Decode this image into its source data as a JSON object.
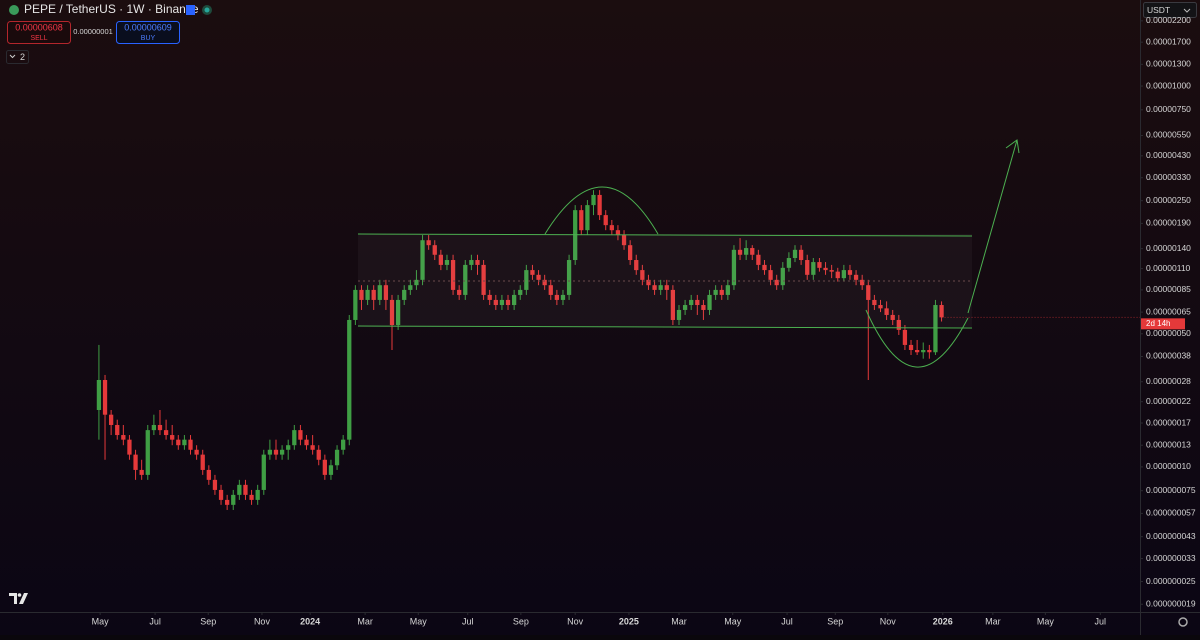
{
  "chart_data": {
    "type": "candlestick",
    "title": "PEPE / TetherUS · 1W · Binance",
    "log_scale": true,
    "grid": false,
    "up_color": "#3f9e44",
    "down_color": "#e5393a",
    "open": [
      1.99e-07,
      2.86e-07,
      1.88e-07,
      1.66e-07,
      1.47e-07,
      1.39e-07,
      1.16e-07,
      9.64e-08,
      9.08e-08,
      1.56e-07,
      1.66e-07,
      1.56e-07,
      1.47e-07,
      1.39e-07,
      1.3e-07,
      1.39e-07,
      1.23e-07,
      1.16e-07,
      9.64e-08,
      8.55e-08,
      7.57e-08,
      6.71e-08,
      6.32e-08,
      7.13e-08,
      8.05e-08,
      7.13e-08,
      6.71e-08,
      7.57e-08,
      1.16e-07,
      1.23e-07,
      1.16e-07,
      1.23e-07,
      1.3e-07,
      1.56e-07,
      1.39e-07,
      1.3e-07,
      1.23e-07,
      1.09e-07,
      9.08e-08,
      1.02e-07,
      1.23e-07,
      1.39e-07,
      5.91e-07,
      8.5e-07,
      7.53e-07,
      8.5e-07,
      7.53e-07,
      9e-07,
      7.53e-07,
      5.56e-07,
      7.53e-07,
      8.5e-07,
      9e-07,
      9.6e-07,
      1.55e-06,
      1.46e-06,
      1.3e-06,
      1.15e-06,
      1.22e-06,
      8.5e-07,
      8e-07,
      1.15e-06,
      1.22e-06,
      1.15e-06,
      8e-07,
      7.53e-07,
      7.08e-07,
      7.53e-07,
      7.08e-07,
      8e-07,
      8.5e-07,
      1.08e-06,
      1.02e-06,
      9.6e-07,
      9e-07,
      8e-07,
      7.53e-07,
      8e-07,
      1.22e-06,
      2.23e-06,
      1.75e-06,
      2.37e-06,
      2.68e-06,
      2.1e-06,
      1.86e-06,
      1.75e-06,
      1.65e-06,
      1.46e-06,
      1.22e-06,
      1.08e-06,
      9.6e-07,
      9e-07,
      8.5e-07,
      9e-07,
      8.5e-07,
      5.91e-07,
      6.67e-07,
      7.08e-07,
      7.53e-07,
      7.08e-07,
      6.67e-07,
      8e-07,
      8.5e-07,
      8e-07,
      9e-07,
      1.38e-06,
      1.3e-06,
      1.41e-06,
      1.3e-06,
      1.15e-06,
      1.08e-06,
      9.6e-07,
      9e-07,
      1.11e-06,
      1.25e-06,
      1.38e-06,
      1.22e-06,
      1.02e-06,
      1.19e-06,
      1.11e-06,
      1.08e-06,
      1.06e-06,
      9.8e-07,
      1.08e-06,
      1.02e-06,
      9.6e-07,
      9e-07,
      7.53e-07,
      7.08e-07,
      6.8e-07,
      6.28e-07,
      5.91e-07,
      5.24e-07,
      4.37e-07,
      4.11e-07,
      4e-07,
      4.11e-07,
      4e-07,
      7.08e-07
    ],
    "high": [
      4.37e-07,
      3.04e-07,
      1.99e-07,
      1.77e-07,
      1.66e-07,
      1.47e-07,
      1.23e-07,
      1.09e-07,
      1.66e-07,
      1.88e-07,
      1.99e-07,
      1.77e-07,
      1.66e-07,
      1.47e-07,
      1.47e-07,
      1.47e-07,
      1.3e-07,
      1.23e-07,
      1.02e-07,
      9.08e-08,
      8.05e-08,
      7.13e-08,
      7.57e-08,
      8.55e-08,
      8.55e-08,
      7.57e-08,
      8.05e-08,
      1.23e-07,
      1.39e-07,
      1.39e-07,
      1.3e-07,
      1.39e-07,
      1.66e-07,
      1.66e-07,
      1.47e-07,
      1.47e-07,
      1.3e-07,
      1.16e-07,
      1.09e-07,
      1.3e-07,
      1.47e-07,
      6.28e-07,
      9e-07,
      9e-07,
      9e-07,
      9e-07,
      9.6e-07,
      9.6e-07,
      8e-07,
      8e-07,
      9e-07,
      9.6e-07,
      1.08e-06,
      1.65e-06,
      1.65e-06,
      1.55e-06,
      1.38e-06,
      1.3e-06,
      1.3e-06,
      9e-07,
      1.22e-06,
      1.3e-06,
      1.3e-06,
      1.22e-06,
      8.5e-07,
      8e-07,
      8e-07,
      8e-07,
      8.5e-07,
      9e-07,
      1.15e-06,
      1.15e-06,
      1.08e-06,
      1.02e-06,
      9.6e-07,
      8.5e-07,
      8.5e-07,
      1.3e-06,
      2.37e-06,
      2.37e-06,
      2.52e-06,
      2.84e-06,
      2.84e-06,
      2.23e-06,
      1.98e-06,
      1.86e-06,
      1.75e-06,
      1.55e-06,
      1.3e-06,
      1.15e-06,
      1.02e-06,
      9.6e-07,
      9.6e-07,
      9.6e-07,
      9e-07,
      7.08e-07,
      7.53e-07,
      8e-07,
      8e-07,
      7.53e-07,
      8.5e-07,
      9e-07,
      9e-07,
      9.6e-07,
      1.46e-06,
      1.59e-06,
      1.55e-06,
      1.46e-06,
      1.38e-06,
      1.22e-06,
      1.15e-06,
      1.02e-06,
      1.19e-06,
      1.34e-06,
      1.46e-06,
      1.46e-06,
      1.3e-06,
      1.25e-06,
      1.25e-06,
      1.19e-06,
      1.15e-06,
      1.11e-06,
      1.15e-06,
      1.15e-06,
      1.08e-06,
      1.02e-06,
      9.6e-07,
      8e-07,
      7.53e-07,
      7.4e-07,
      6.67e-07,
      6.28e-07,
      5.56e-07,
      4.64e-07,
      4.64e-07,
      4.5e-07,
      4.37e-07,
      7.53e-07,
      7.4e-07
    ],
    "low": [
      1.39e-07,
      1.09e-07,
      1.47e-07,
      1.39e-07,
      1.3e-07,
      1.09e-07,
      8.55e-08,
      8.55e-08,
      8.55e-08,
      1.47e-07,
      1.47e-07,
      1.39e-07,
      1.3e-07,
      1.23e-07,
      1.23e-07,
      1.16e-07,
      1.09e-07,
      9.08e-08,
      8.05e-08,
      7.13e-08,
      6.32e-08,
      5.94e-08,
      5.94e-08,
      6.71e-08,
      6.71e-08,
      6.32e-08,
      6.32e-08,
      7.13e-08,
      1.09e-07,
      1.09e-07,
      1.09e-07,
      1.09e-07,
      1.23e-07,
      1.3e-07,
      1.23e-07,
      1.16e-07,
      1.02e-07,
      8.55e-08,
      8.55e-08,
      9.64e-08,
      1.16e-07,
      1.3e-07,
      5.56e-07,
      6.67e-07,
      7.08e-07,
      6.67e-07,
      7.08e-07,
      6.67e-07,
      4.11e-07,
      5.24e-07,
      7.08e-07,
      8e-07,
      8.5e-07,
      9e-07,
      1.38e-06,
      1.22e-06,
      1.08e-06,
      1.08e-06,
      8e-07,
      7.53e-07,
      7.53e-07,
      1.08e-06,
      1.02e-06,
      7.53e-07,
      7.08e-07,
      6.67e-07,
      6.67e-07,
      6.67e-07,
      6.67e-07,
      7.53e-07,
      8e-07,
      9.6e-07,
      9e-07,
      8.5e-07,
      7.53e-07,
      7.08e-07,
      7.08e-07,
      7.53e-07,
      1.15e-06,
      1.65e-06,
      1.65e-06,
      2.1e-06,
      1.98e-06,
      1.75e-06,
      1.65e-06,
      1.55e-06,
      1.38e-06,
      1.15e-06,
      1.02e-06,
      9e-07,
      8.5e-07,
      8e-07,
      8e-07,
      7.53e-07,
      5.56e-07,
      5.56e-07,
      6.28e-07,
      6.67e-07,
      6.28e-07,
      5.91e-07,
      6.28e-07,
      7.53e-07,
      7.53e-07,
      7.53e-07,
      8.5e-07,
      1.22e-06,
      1.22e-06,
      1.22e-06,
      1.08e-06,
      1.02e-06,
      9e-07,
      8.5e-07,
      8.5e-07,
      1.06e-06,
      1.19e-06,
      1.15e-06,
      9.6e-07,
      9.6e-07,
      1.06e-06,
      1.02e-06,
      9.8e-07,
      9.4e-07,
      9.4e-07,
      9.6e-07,
      9e-07,
      8.5e-07,
      2.86e-07,
      6.67e-07,
      6.5e-07,
      5.91e-07,
      5.56e-07,
      4.93e-07,
      4.11e-07,
      3.87e-07,
      3.87e-07,
      3.7e-07,
      3.7e-07,
      3.87e-07,
      5.8e-07
    ],
    "close": [
      2.86e-07,
      1.88e-07,
      1.66e-07,
      1.47e-07,
      1.39e-07,
      1.16e-07,
      9.64e-08,
      9.08e-08,
      1.56e-07,
      1.66e-07,
      1.56e-07,
      1.47e-07,
      1.39e-07,
      1.3e-07,
      1.39e-07,
      1.23e-07,
      1.16e-07,
      9.64e-08,
      8.55e-08,
      7.57e-08,
      6.71e-08,
      6.32e-08,
      7.13e-08,
      8.05e-08,
      7.13e-08,
      6.71e-08,
      7.57e-08,
      1.16e-07,
      1.23e-07,
      1.16e-07,
      1.23e-07,
      1.3e-07,
      1.56e-07,
      1.39e-07,
      1.3e-07,
      1.23e-07,
      1.09e-07,
      9.08e-08,
      1.02e-07,
      1.23e-07,
      1.39e-07,
      5.91e-07,
      8.5e-07,
      7.53e-07,
      8.5e-07,
      7.53e-07,
      9e-07,
      7.53e-07,
      5.56e-07,
      7.53e-07,
      8.5e-07,
      9e-07,
      9.6e-07,
      1.55e-06,
      1.46e-06,
      1.3e-06,
      1.15e-06,
      1.22e-06,
      8.5e-07,
      8e-07,
      1.15e-06,
      1.22e-06,
      1.15e-06,
      8e-07,
      7.53e-07,
      7.08e-07,
      7.53e-07,
      7.08e-07,
      8e-07,
      8.5e-07,
      1.08e-06,
      1.02e-06,
      9.6e-07,
      9e-07,
      8e-07,
      7.53e-07,
      8e-07,
      1.22e-06,
      2.23e-06,
      1.75e-06,
      2.37e-06,
      2.68e-06,
      2.1e-06,
      1.86e-06,
      1.75e-06,
      1.65e-06,
      1.46e-06,
      1.22e-06,
      1.08e-06,
      9.6e-07,
      9e-07,
      8.5e-07,
      9e-07,
      8.5e-07,
      5.91e-07,
      6.67e-07,
      7.08e-07,
      7.53e-07,
      7.08e-07,
      6.67e-07,
      8e-07,
      8.5e-07,
      8e-07,
      9e-07,
      1.38e-06,
      1.3e-06,
      1.41e-06,
      1.3e-06,
      1.15e-06,
      1.08e-06,
      9.6e-07,
      9e-07,
      1.11e-06,
      1.25e-06,
      1.38e-06,
      1.22e-06,
      1.02e-06,
      1.19e-06,
      1.11e-06,
      1.08e-06,
      1.06e-06,
      9.8e-07,
      1.08e-06,
      1.02e-06,
      9.6e-07,
      9e-07,
      7.53e-07,
      7.08e-07,
      6.8e-07,
      6.28e-07,
      5.91e-07,
      5.24e-07,
      4.37e-07,
      4.11e-07,
      4e-07,
      4.11e-07,
      4e-07,
      7.08e-07,
      6.1e-07
    ],
    "ylim": [
      1.73e-08,
      2.83e-05
    ],
    "yticks": [
      {
        "value": 2.2e-05,
        "label": "0.00002200"
      },
      {
        "value": 1.7e-05,
        "label": "0.00001700"
      },
      {
        "value": 1.3e-05,
        "label": "0.00001300"
      },
      {
        "value": 1e-05,
        "label": "0.00001000"
      },
      {
        "value": 7.5e-06,
        "label": "0.00000750"
      },
      {
        "value": 5.5e-06,
        "label": "0.00000550"
      },
      {
        "value": 4.3e-06,
        "label": "0.00000430"
      },
      {
        "value": 3.3e-06,
        "label": "0.00000330"
      },
      {
        "value": 2.5e-06,
        "label": "0.00000250"
      },
      {
        "value": 1.9e-06,
        "label": "0.00000190"
      },
      {
        "value": 1.4e-06,
        "label": "0.00000140"
      },
      {
        "value": 1.1e-06,
        "label": "0.00000110"
      },
      {
        "value": 8.5e-07,
        "label": "0.00000085"
      },
      {
        "value": 6.5e-07,
        "label": "0.00000065"
      },
      {
        "value": 5e-07,
        "label": "0.00000050"
      },
      {
        "value": 3.8e-07,
        "label": "0.00000038"
      },
      {
        "value": 2.8e-07,
        "label": "0.00000028"
      },
      {
        "value": 2.2e-07,
        "label": "0.00000022"
      },
      {
        "value": 1.7e-07,
        "label": "0.00000017"
      },
      {
        "value": 1.3e-07,
        "label": "0.00000013"
      },
      {
        "value": 1e-07,
        "label": "0.00000010"
      },
      {
        "value": 7.5e-08,
        "label": "0.000000075"
      },
      {
        "value": 5.7e-08,
        "label": "0.000000057"
      },
      {
        "value": 4.3e-08,
        "label": "0.000000043"
      },
      {
        "value": 3.3e-08,
        "label": "0.000000033"
      },
      {
        "value": 2.5e-08,
        "label": "0.000000025"
      },
      {
        "value": 1.9e-08,
        "label": "0.000000019"
      }
    ],
    "xlim": [
      -16.2,
      170.5
    ],
    "xticks": [
      {
        "value": 0.2,
        "label": "May"
      },
      {
        "value": 9.2,
        "label": "Jul"
      },
      {
        "value": 17.9,
        "label": "Sep"
      },
      {
        "value": 26.7,
        "label": "Nov"
      },
      {
        "value": 34.6,
        "label": "2024"
      },
      {
        "value": 43.6,
        "label": "Mar"
      },
      {
        "value": 52.3,
        "label": "May"
      },
      {
        "value": 60.4,
        "label": "Jul"
      },
      {
        "value": 69.1,
        "label": "Sep"
      },
      {
        "value": 78.0,
        "label": "Nov"
      },
      {
        "value": 86.8,
        "label": "2025"
      },
      {
        "value": 95.0,
        "label": "Mar"
      },
      {
        "value": 103.8,
        "label": "May"
      },
      {
        "value": 112.7,
        "label": "Jul"
      },
      {
        "value": 120.6,
        "label": "Sep"
      },
      {
        "value": 129.2,
        "label": "Nov"
      },
      {
        "value": 138.2,
        "label": "2026"
      },
      {
        "value": 146.4,
        "label": "Mar"
      },
      {
        "value": 155.0,
        "label": "May"
      },
      {
        "value": 164.0,
        "label": "Jul"
      }
    ],
    "currency": "USDT",
    "countdown": "2d 14h"
  },
  "toolbar": {
    "sell_price": "0.00000608",
    "sell_label": "SELL",
    "spread": "0.00000001",
    "buy_price": "0.00000609",
    "buy_label": "BUY",
    "indicator_count": "2"
  }
}
